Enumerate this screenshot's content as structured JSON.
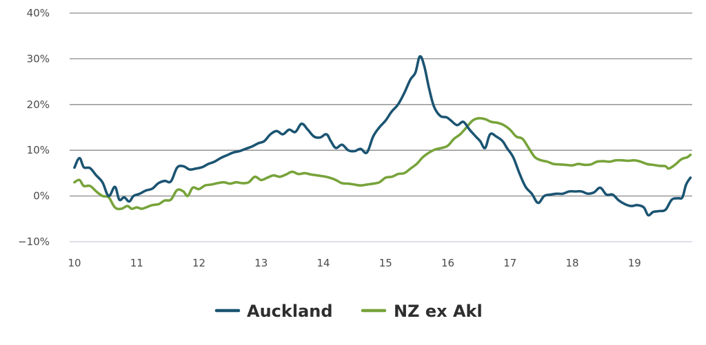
{
  "chart_data": {
    "type": "line",
    "title": "",
    "xlabel": "",
    "ylabel": "",
    "xlim": [
      10,
      19.9
    ],
    "ylim": [
      -10,
      40
    ],
    "x_ticks": [
      "10",
      "11",
      "12",
      "13",
      "14",
      "15",
      "16",
      "17",
      "18",
      "19"
    ],
    "y_ticks": [
      "−10%",
      "0%",
      "10%",
      "20%",
      "30%",
      "40%"
    ],
    "grid": true,
    "legend_position": "bottom",
    "series": [
      {
        "name": "Auckland",
        "color": "#1b5472",
        "points": [
          [
            10.0,
            6.2
          ],
          [
            10.08,
            8.3
          ],
          [
            10.15,
            6.3
          ],
          [
            10.25,
            6.1
          ],
          [
            10.35,
            4.5
          ],
          [
            10.45,
            3.0
          ],
          [
            10.55,
            0.0
          ],
          [
            10.65,
            2.0
          ],
          [
            10.72,
            -0.8
          ],
          [
            10.8,
            -0.3
          ],
          [
            10.88,
            -1.2
          ],
          [
            10.95,
            0.0
          ],
          [
            11.05,
            0.5
          ],
          [
            11.15,
            1.2
          ],
          [
            11.25,
            1.6
          ],
          [
            11.35,
            2.8
          ],
          [
            11.45,
            3.3
          ],
          [
            11.55,
            3.2
          ],
          [
            11.65,
            6.2
          ],
          [
            11.75,
            6.5
          ],
          [
            11.85,
            5.8
          ],
          [
            11.95,
            6.0
          ],
          [
            12.05,
            6.3
          ],
          [
            12.15,
            7.0
          ],
          [
            12.25,
            7.5
          ],
          [
            12.35,
            8.3
          ],
          [
            12.45,
            8.9
          ],
          [
            12.55,
            9.5
          ],
          [
            12.65,
            9.8
          ],
          [
            12.75,
            10.3
          ],
          [
            12.85,
            10.8
          ],
          [
            12.95,
            11.5
          ],
          [
            13.05,
            12.0
          ],
          [
            13.15,
            13.5
          ],
          [
            13.25,
            14.2
          ],
          [
            13.35,
            13.5
          ],
          [
            13.45,
            14.5
          ],
          [
            13.55,
            14.0
          ],
          [
            13.65,
            15.8
          ],
          [
            13.75,
            14.5
          ],
          [
            13.85,
            13.0
          ],
          [
            13.95,
            12.8
          ],
          [
            14.05,
            13.5
          ],
          [
            14.12,
            12.0
          ],
          [
            14.2,
            10.5
          ],
          [
            14.3,
            11.2
          ],
          [
            14.4,
            10.0
          ],
          [
            14.5,
            9.8
          ],
          [
            14.6,
            10.3
          ],
          [
            14.7,
            9.5
          ],
          [
            14.8,
            13.0
          ],
          [
            14.9,
            15.0
          ],
          [
            15.0,
            16.5
          ],
          [
            15.1,
            18.5
          ],
          [
            15.2,
            20.0
          ],
          [
            15.3,
            22.5
          ],
          [
            15.4,
            25.5
          ],
          [
            15.48,
            27.0
          ],
          [
            15.55,
            30.5
          ],
          [
            15.62,
            28.5
          ],
          [
            15.7,
            23.5
          ],
          [
            15.78,
            19.5
          ],
          [
            15.88,
            17.5
          ],
          [
            15.98,
            17.2
          ],
          [
            16.05,
            16.5
          ],
          [
            16.15,
            15.5
          ],
          [
            16.25,
            16.2
          ],
          [
            16.35,
            14.5
          ],
          [
            16.45,
            13.0
          ],
          [
            16.52,
            12.0
          ],
          [
            16.6,
            10.5
          ],
          [
            16.68,
            13.5
          ],
          [
            16.78,
            13.0
          ],
          [
            16.88,
            12.0
          ],
          [
            16.95,
            10.5
          ],
          [
            17.05,
            8.5
          ],
          [
            17.15,
            5.0
          ],
          [
            17.25,
            2.0
          ],
          [
            17.35,
            0.5
          ],
          [
            17.45,
            -1.5
          ],
          [
            17.55,
            0.0
          ],
          [
            17.65,
            0.3
          ],
          [
            17.75,
            0.5
          ],
          [
            17.85,
            0.5
          ],
          [
            17.95,
            1.0
          ],
          [
            18.05,
            1.0
          ],
          [
            18.15,
            1.0
          ],
          [
            18.25,
            0.5
          ],
          [
            18.35,
            0.8
          ],
          [
            18.45,
            1.8
          ],
          [
            18.55,
            0.3
          ],
          [
            18.65,
            0.3
          ],
          [
            18.75,
            -1.0
          ],
          [
            18.85,
            -1.8
          ],
          [
            18.95,
            -2.2
          ],
          [
            19.05,
            -2.0
          ],
          [
            19.15,
            -2.5
          ],
          [
            19.22,
            -4.2
          ],
          [
            19.3,
            -3.5
          ],
          [
            19.4,
            -3.3
          ],
          [
            19.5,
            -3.0
          ],
          [
            19.6,
            -0.8
          ],
          [
            19.7,
            -0.5
          ],
          [
            19.77,
            -0.3
          ],
          [
            19.83,
            2.5
          ],
          [
            19.9,
            4.0
          ]
        ]
      },
      {
        "name": "NZ ex Akl",
        "color": "#77a33a",
        "points": [
          [
            10.0,
            3.0
          ],
          [
            10.08,
            3.5
          ],
          [
            10.15,
            2.2
          ],
          [
            10.25,
            2.2
          ],
          [
            10.35,
            1.0
          ],
          [
            10.45,
            0.0
          ],
          [
            10.55,
            -0.3
          ],
          [
            10.65,
            -2.5
          ],
          [
            10.75,
            -2.8
          ],
          [
            10.85,
            -2.2
          ],
          [
            10.92,
            -2.8
          ],
          [
            11.0,
            -2.5
          ],
          [
            11.08,
            -2.8
          ],
          [
            11.15,
            -2.5
          ],
          [
            11.25,
            -2.0
          ],
          [
            11.35,
            -1.8
          ],
          [
            11.45,
            -1.0
          ],
          [
            11.55,
            -0.8
          ],
          [
            11.65,
            1.3
          ],
          [
            11.75,
            1.0
          ],
          [
            11.82,
            0.0
          ],
          [
            11.9,
            1.8
          ],
          [
            12.0,
            1.5
          ],
          [
            12.1,
            2.3
          ],
          [
            12.2,
            2.5
          ],
          [
            12.3,
            2.8
          ],
          [
            12.4,
            3.0
          ],
          [
            12.5,
            2.7
          ],
          [
            12.6,
            3.0
          ],
          [
            12.7,
            2.8
          ],
          [
            12.8,
            3.0
          ],
          [
            12.9,
            4.2
          ],
          [
            13.0,
            3.5
          ],
          [
            13.1,
            4.0
          ],
          [
            13.2,
            4.5
          ],
          [
            13.3,
            4.2
          ],
          [
            13.4,
            4.7
          ],
          [
            13.5,
            5.3
          ],
          [
            13.6,
            4.8
          ],
          [
            13.7,
            5.0
          ],
          [
            13.8,
            4.7
          ],
          [
            13.9,
            4.5
          ],
          [
            14.0,
            4.3
          ],
          [
            14.1,
            4.0
          ],
          [
            14.2,
            3.5
          ],
          [
            14.3,
            2.8
          ],
          [
            14.4,
            2.7
          ],
          [
            14.5,
            2.5
          ],
          [
            14.6,
            2.3
          ],
          [
            14.7,
            2.5
          ],
          [
            14.8,
            2.7
          ],
          [
            14.9,
            3.0
          ],
          [
            15.0,
            4.0
          ],
          [
            15.1,
            4.2
          ],
          [
            15.2,
            4.8
          ],
          [
            15.3,
            5.0
          ],
          [
            15.4,
            6.0
          ],
          [
            15.5,
            7.0
          ],
          [
            15.6,
            8.5
          ],
          [
            15.7,
            9.5
          ],
          [
            15.8,
            10.2
          ],
          [
            15.9,
            10.5
          ],
          [
            16.0,
            11.0
          ],
          [
            16.1,
            12.5
          ],
          [
            16.2,
            13.5
          ],
          [
            16.3,
            15.0
          ],
          [
            16.4,
            16.5
          ],
          [
            16.5,
            17.0
          ],
          [
            16.6,
            16.8
          ],
          [
            16.7,
            16.2
          ],
          [
            16.8,
            16.0
          ],
          [
            16.9,
            15.5
          ],
          [
            17.0,
            14.5
          ],
          [
            17.1,
            13.0
          ],
          [
            17.2,
            12.5
          ],
          [
            17.3,
            10.5
          ],
          [
            17.4,
            8.5
          ],
          [
            17.5,
            7.8
          ],
          [
            17.6,
            7.5
          ],
          [
            17.7,
            7.0
          ],
          [
            17.8,
            6.9
          ],
          [
            17.9,
            6.8
          ],
          [
            18.0,
            6.7
          ],
          [
            18.1,
            7.0
          ],
          [
            18.2,
            6.8
          ],
          [
            18.3,
            6.9
          ],
          [
            18.4,
            7.5
          ],
          [
            18.5,
            7.6
          ],
          [
            18.6,
            7.5
          ],
          [
            18.7,
            7.8
          ],
          [
            18.8,
            7.8
          ],
          [
            18.9,
            7.7
          ],
          [
            19.0,
            7.8
          ],
          [
            19.1,
            7.5
          ],
          [
            19.2,
            7.0
          ],
          [
            19.3,
            6.8
          ],
          [
            19.4,
            6.6
          ],
          [
            19.5,
            6.5
          ],
          [
            19.55,
            6.0
          ],
          [
            19.65,
            6.8
          ],
          [
            19.75,
            8.0
          ],
          [
            19.85,
            8.5
          ],
          [
            19.9,
            9.0
          ]
        ]
      }
    ]
  }
}
